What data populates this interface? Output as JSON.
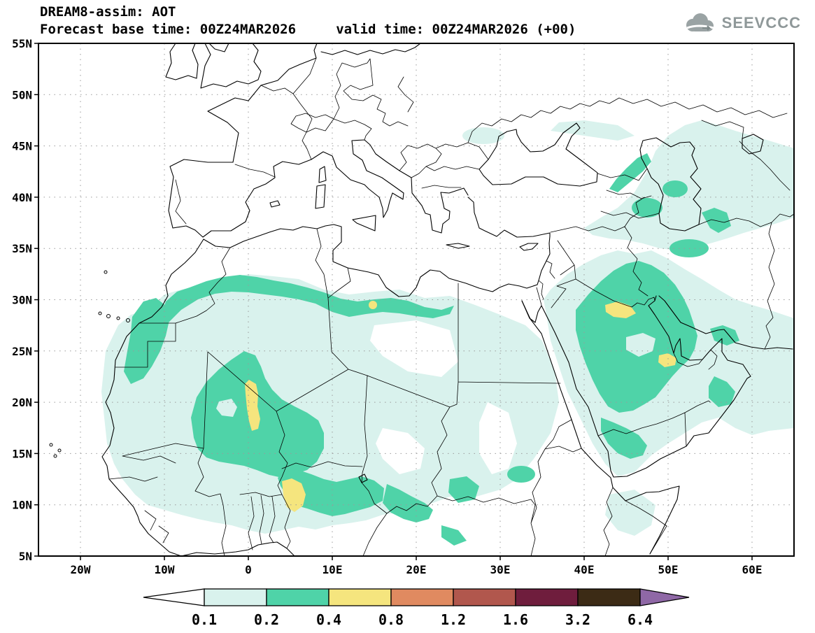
{
  "header": {
    "line1": "DREAM8-assim: AOT",
    "line2": "Forecast base time: 00Z24MAR2026     valid time: 00Z24MAR2026 (+00)"
  },
  "logo": {
    "text": "SEEVCCC",
    "icon": "cloud-icon"
  },
  "map": {
    "extent": {
      "lon_min": -25,
      "lon_max": 65,
      "lat_min": 5,
      "lat_max": 55
    },
    "lat_ticks": [
      {
        "label": "55N",
        "deg": 55
      },
      {
        "label": "50N",
        "deg": 50
      },
      {
        "label": "45N",
        "deg": 45
      },
      {
        "label": "40N",
        "deg": 40
      },
      {
        "label": "35N",
        "deg": 35
      },
      {
        "label": "30N",
        "deg": 30
      },
      {
        "label": "25N",
        "deg": 25
      },
      {
        "label": "20N",
        "deg": 20
      },
      {
        "label": "15N",
        "deg": 15
      },
      {
        "label": "10N",
        "deg": 10
      },
      {
        "label": "5N",
        "deg": 5
      }
    ],
    "lon_ticks": [
      {
        "label": "20W",
        "deg": -20
      },
      {
        "label": "10W",
        "deg": -10
      },
      {
        "label": "0",
        "deg": 0
      },
      {
        "label": "10E",
        "deg": 10
      },
      {
        "label": "20E",
        "deg": 20
      },
      {
        "label": "30E",
        "deg": 30
      },
      {
        "label": "40E",
        "deg": 40
      },
      {
        "label": "50E",
        "deg": 50
      },
      {
        "label": "60E",
        "deg": 60
      }
    ]
  },
  "colorbar": {
    "levels": [
      "0.1",
      "0.2",
      "0.4",
      "0.8",
      "1.2",
      "1.6",
      "3.2",
      "6.4"
    ],
    "under_color": "#ffffff",
    "segment_colors": [
      "#d9f2ed",
      "#4fd3a8",
      "#f5e57e",
      "#e08a60",
      "#b1574d",
      "#6f1d3d",
      "#3c2b15"
    ],
    "over_color": "#8f68a6"
  },
  "fills": {
    "aot_01": "#d9f2ed",
    "aot_02": "#4fd3a8",
    "aot_04": "#f5e57e"
  },
  "styles": {
    "coast": "#000000",
    "grid": "#9a9a9a",
    "text": "#000000",
    "logo": "#8f9899"
  }
}
